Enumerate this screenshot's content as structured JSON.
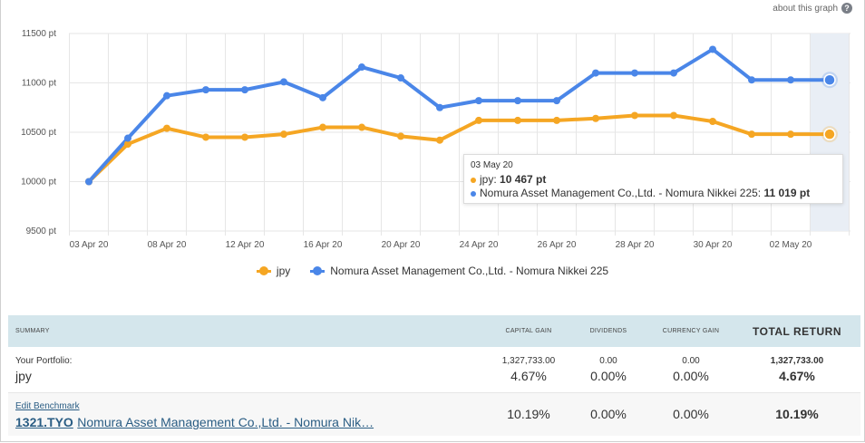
{
  "header": {
    "about_label": "about this graph",
    "help_glyph": "?"
  },
  "chart_data": {
    "type": "line",
    "ylabel": "",
    "xlabel": "",
    "y_ticks": [
      "9500 pt",
      "10000 pt",
      "10500 pt",
      "11000 pt",
      "11500 pt"
    ],
    "y_tick_values": [
      9500,
      10000,
      10500,
      11000,
      11500
    ],
    "ylim": [
      9500,
      11500
    ],
    "x_ticks": [
      "03 Apr 20",
      "08 Apr 20",
      "12 Apr 20",
      "16 Apr 20",
      "20 Apr 20",
      "24 Apr 20",
      "26 Apr 20",
      "28 Apr 20",
      "30 Apr 20",
      "02 May 20"
    ],
    "x_tick_index": [
      0,
      2,
      4,
      6,
      8,
      10,
      12,
      14,
      16,
      18
    ],
    "highlight_index": 19,
    "grid": true,
    "legend_position": "bottom-center",
    "series": [
      {
        "name": "jpy",
        "color": "#f5a623",
        "values": [
          10000,
          10380,
          10540,
          10450,
          10450,
          10480,
          10550,
          10550,
          10460,
          10420,
          10620,
          10620,
          10620,
          10640,
          10670,
          10670,
          10610,
          10480,
          10480,
          10480
        ]
      },
      {
        "name": "Nomura Asset Management Co.,Ltd. - Nomura Nikkei 225",
        "color": "#4a86e8",
        "values": [
          10000,
          10440,
          10870,
          10930,
          10930,
          11010,
          10850,
          11160,
          11050,
          10750,
          10820,
          10820,
          10820,
          11100,
          11100,
          11100,
          11340,
          11030,
          11030,
          11030
        ]
      }
    ]
  },
  "tooltip": {
    "date": "03 May 20",
    "rows": [
      {
        "label": "jpy: ",
        "value": "10 467 pt",
        "color": "#f5a623"
      },
      {
        "label": "Nomura Asset Management Co.,Ltd. - Nomura Nikkei 225: ",
        "value": "11 019 pt",
        "color": "#4a86e8"
      }
    ]
  },
  "summary": {
    "headers": {
      "summary": "Summary",
      "capital_gain": "Capital Gain",
      "dividends": "Dividends",
      "currency_gain": "Currency Gain",
      "total_return": "TOTAL RETURN"
    },
    "portfolio": {
      "label": "Your Portfolio:",
      "name": "jpy",
      "capital_gain_amount": "1,327,733.00",
      "capital_gain_pct": "4.67%",
      "dividends_amount": "0.00",
      "dividends_pct": "0.00%",
      "currency_amount": "0.00",
      "currency_pct": "0.00%",
      "total_amount": "1,327,733.00",
      "total_pct": "4.67%"
    },
    "benchmark": {
      "edit_label": "Edit Benchmark",
      "ticker": "1321.TYO",
      "name": "Nomura Asset Management Co.,Ltd. - Nomura Nik…",
      "capital_gain_pct": "10.19%",
      "dividends_pct": "0.00%",
      "currency_pct": "0.00%",
      "total_pct": "10.19%"
    }
  }
}
